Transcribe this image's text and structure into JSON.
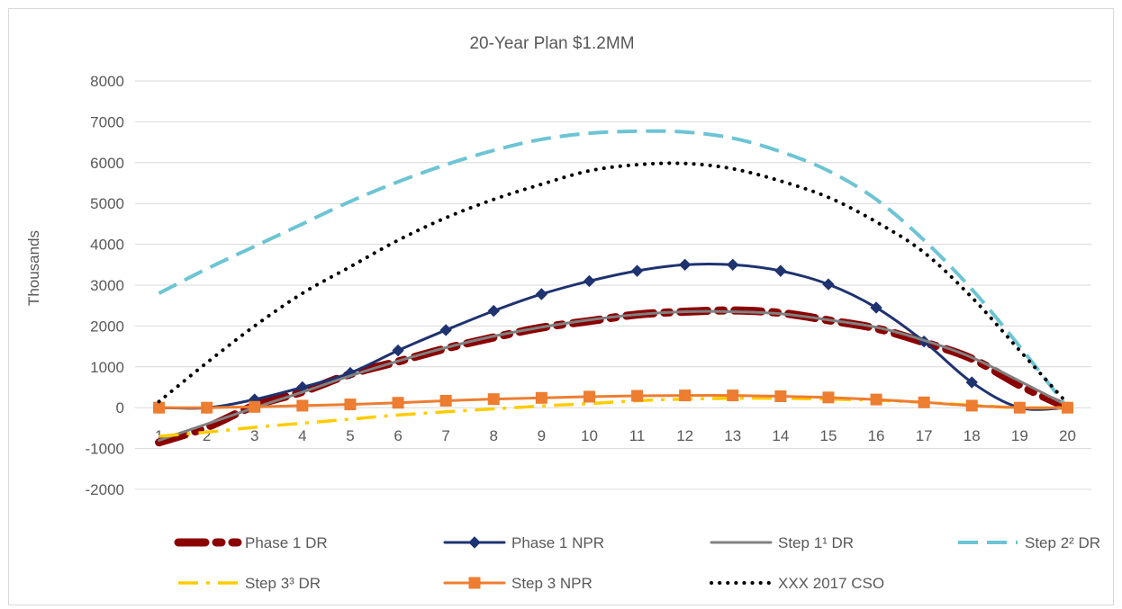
{
  "chart_data": {
    "type": "line",
    "title": "20-Year Plan $1.2MM",
    "ylabel": "Thousands",
    "xlabel": "",
    "x": [
      1,
      2,
      3,
      4,
      5,
      6,
      7,
      8,
      9,
      10,
      11,
      12,
      13,
      14,
      15,
      16,
      17,
      18,
      19,
      20
    ],
    "ylim": [
      -2000,
      8000
    ],
    "yticks": [
      -2000,
      -1000,
      0,
      1000,
      2000,
      3000,
      4000,
      5000,
      6000,
      7000,
      8000
    ],
    "grid": true,
    "legend_position": "bottom",
    "series": [
      {
        "name": "Phase 1 DR",
        "color": "#8b0000",
        "style": "dash-dot-thick",
        "marker": "none",
        "values": [
          -850,
          -480,
          50,
          390,
          820,
          1130,
          1450,
          1720,
          1960,
          2120,
          2280,
          2350,
          2380,
          2320,
          2140,
          1940,
          1600,
          1200,
          550,
          0
        ]
      },
      {
        "name": "Phase 1 NPR",
        "color": "#1f3370",
        "style": "solid",
        "marker": "diamond",
        "values": [
          0,
          0,
          200,
          500,
          850,
          1400,
          1900,
          2370,
          2780,
          3100,
          3350,
          3500,
          3500,
          3350,
          3020,
          2450,
          1620,
          620,
          0,
          0
        ]
      },
      {
        "name": "Step 1¹ DR",
        "color": "#808080",
        "style": "solid",
        "marker": "none",
        "values": [
          -800,
          -400,
          0,
          380,
          780,
          1140,
          1470,
          1750,
          1970,
          2150,
          2280,
          2350,
          2350,
          2300,
          2150,
          1970,
          1650,
          1230,
          650,
          50
        ]
      },
      {
        "name": "Step 2² DR",
        "color": "#6cc4d4",
        "style": "dash",
        "marker": "none",
        "values": [
          2800,
          3400,
          3950,
          4500,
          5050,
          5530,
          5950,
          6300,
          6570,
          6720,
          6770,
          6750,
          6600,
          6270,
          5800,
          5100,
          4100,
          2900,
          1500,
          0
        ]
      },
      {
        "name": "Step 3³ DR",
        "color": "#ffcc00",
        "style": "dash-dot",
        "marker": "none",
        "values": [
          -700,
          -600,
          -480,
          -380,
          -280,
          -180,
          -100,
          -30,
          40,
          100,
          170,
          210,
          230,
          230,
          210,
          180,
          130,
          60,
          0,
          0
        ]
      },
      {
        "name": "Step 3 NPR",
        "color": "#ed7d31",
        "style": "solid",
        "marker": "square",
        "values": [
          0,
          0,
          20,
          50,
          80,
          120,
          170,
          210,
          240,
          270,
          290,
          300,
          300,
          280,
          250,
          200,
          130,
          50,
          0,
          0
        ]
      },
      {
        "name": "XXX 2017 CSO",
        "color": "#000000",
        "style": "dot",
        "marker": "none",
        "values": [
          150,
          1100,
          2000,
          2800,
          3450,
          4100,
          4650,
          5100,
          5470,
          5800,
          5950,
          5980,
          5850,
          5550,
          5150,
          4550,
          3800,
          2700,
          1400,
          100
        ]
      }
    ]
  }
}
